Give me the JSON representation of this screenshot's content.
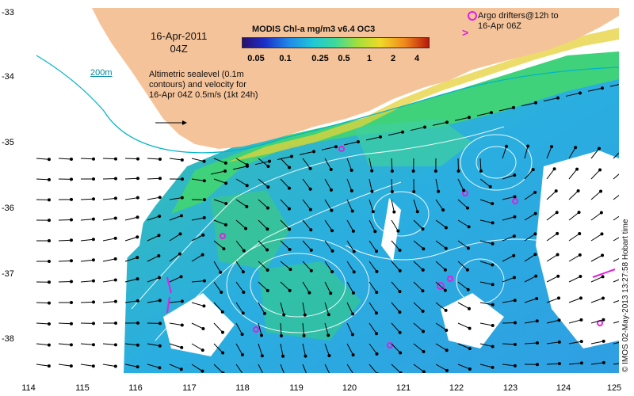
{
  "map": {
    "date": "16-Apr-2011\n04Z",
    "depth_contour": "200m",
    "info": "Altimetric sealevel (0.1m contours) and velocity for 16-Apr 04Z 0.5m/s (1kt 24h)",
    "colorbar_title": "MODIS Chl-a mg/m3 v6.4 OC3",
    "colorbar_ticks": [
      "0.05",
      "0.1",
      "0.25",
      "0.5",
      "1",
      "2",
      "4"
    ],
    "argo_legend": "Argo drifters@12h to 16-Apr 06Z",
    "credit": "© IMOS 02-May-2013 13:27:58 Hobart time",
    "x_ticks": [
      "114",
      "115",
      "116",
      "117",
      "118",
      "119",
      "120",
      "121",
      "122",
      "123",
      "124",
      "125"
    ],
    "y_ticks": [
      "-33",
      "-34",
      "-35",
      "-36",
      "-37",
      "-38"
    ],
    "colors": {
      "land": "#f5c39a",
      "ocean_low": "#2aa0e8",
      "ocean_mid": "#35c6b4",
      "coast_green": "#3fd27a",
      "argo": "#e020e0",
      "contour": "#ffffff",
      "depth_line": "#00b4c8"
    }
  }
}
